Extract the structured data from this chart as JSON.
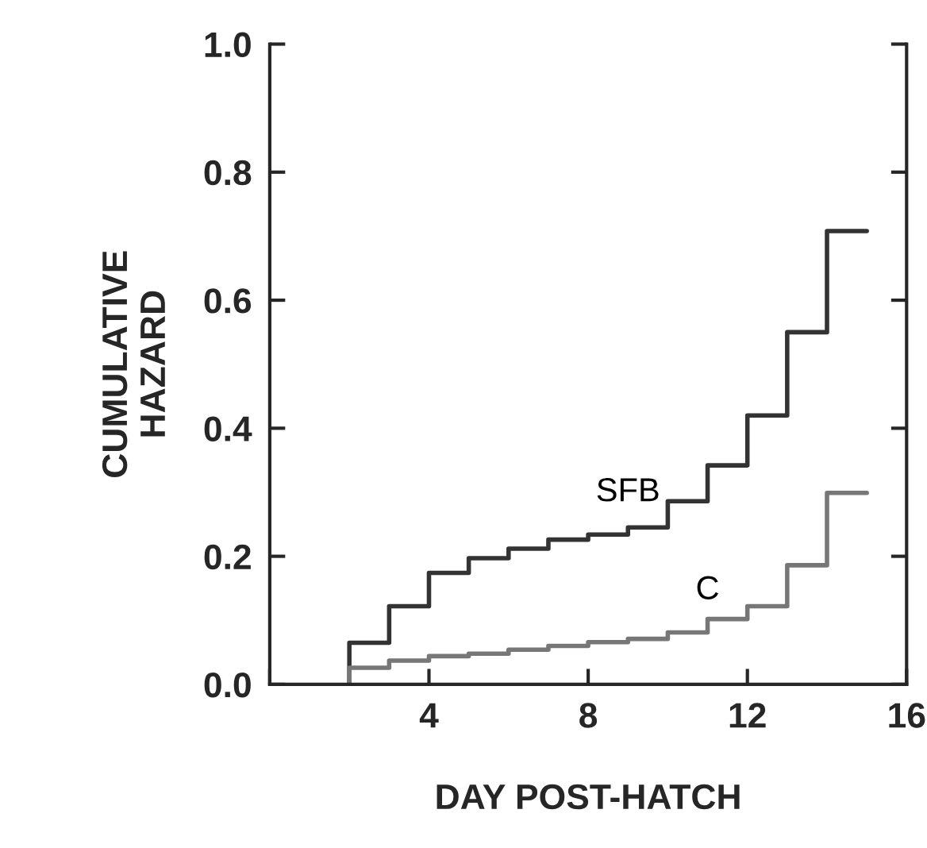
{
  "chart_data": {
    "type": "step",
    "xlabel": "DAY POST-HATCH",
    "ylabel": "CUMULATIVE\nHAZARD",
    "x": [
      2,
      3,
      4,
      5,
      6,
      7,
      8,
      9,
      10,
      11,
      12,
      13,
      14,
      15
    ],
    "series": [
      {
        "name": "SFB",
        "color": "#333333",
        "values": [
          0,
          0.065,
          0.122,
          0.174,
          0.197,
          0.212,
          0.226,
          0.234,
          0.245,
          0.286,
          0.342,
          0.42,
          0.55,
          0.708
        ]
      },
      {
        "name": "C",
        "color": "#777777",
        "values": [
          0,
          0.026,
          0.037,
          0.044,
          0.048,
          0.054,
          0.06,
          0.066,
          0.071,
          0.081,
          0.102,
          0.122,
          0.186,
          0.299
        ]
      }
    ],
    "xlim": [
      0,
      16
    ],
    "xticks": [
      {
        "value": 0,
        "label": null
      },
      4,
      8,
      12,
      16
    ],
    "ylim": [
      0,
      1.0
    ],
    "yticks": [
      {
        "value": 0,
        "label": "0.0"
      },
      0.2,
      0.4,
      0.6,
      0.8,
      {
        "value": 1.0,
        "label": "1.0"
      }
    ],
    "grid": false,
    "legend": false
  }
}
